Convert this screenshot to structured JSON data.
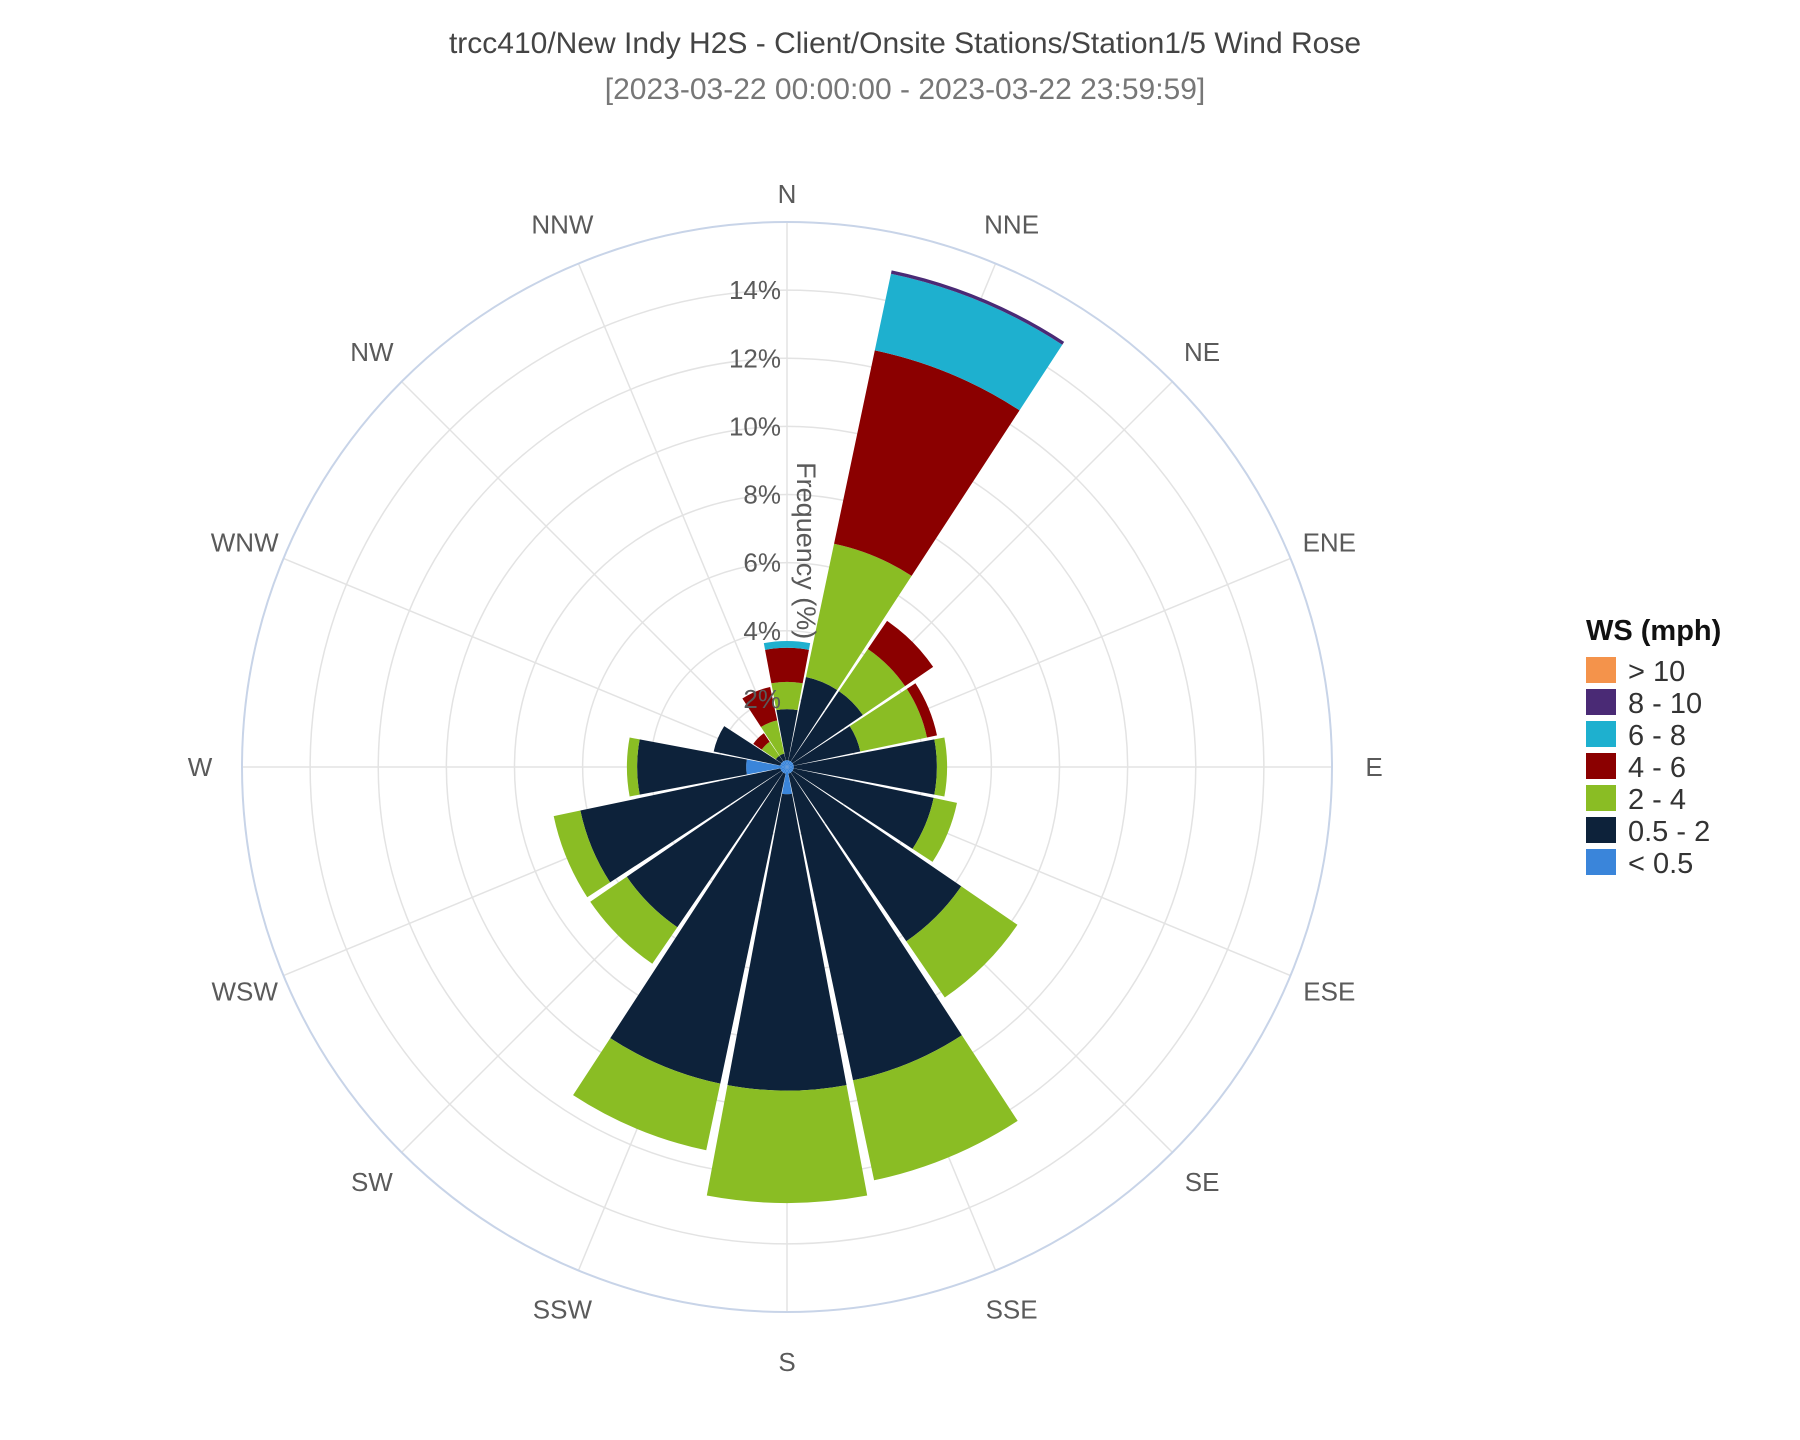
{
  "chart_data": {
    "type": "wind-rose",
    "title": "trcc410/New Indy H2S - Client/Onsite Stations/Station1/5 Wind Rose",
    "subtitle": "[2023-03-22 00:00:00 - 2023-03-22 23:59:59]",
    "radial_axis_title": "Frequency (%)",
    "radial_ticks": [
      "2%",
      "4%",
      "6%",
      "8%",
      "10%",
      "12%",
      "14%"
    ],
    "radial_tick_values": [
      2,
      4,
      6,
      8,
      10,
      12,
      14
    ],
    "r_max": 16,
    "grid": true,
    "legend_position": "right",
    "directions": [
      "N",
      "NNE",
      "NE",
      "ENE",
      "E",
      "ESE",
      "SE",
      "SSE",
      "S",
      "SSW",
      "SW",
      "WSW",
      "W",
      "WNW",
      "NW",
      "NNW"
    ],
    "legend": {
      "title": "WS (mph)",
      "items": [
        {
          "label": "> 10",
          "color": "#F4934B"
        },
        {
          "label": "8 - 10",
          "color": "#4A2A75"
        },
        {
          "label": "6 - 8",
          "color": "#1EB0CF"
        },
        {
          "label": "4 - 6",
          "color": "#8B0000"
        },
        {
          "label": "2 - 4",
          "color": "#8ABD24"
        },
        {
          "label": "0.5 - 2",
          "color": "#0D223A"
        },
        {
          "label": "< 0.5",
          "color": "#3A85DA"
        }
      ]
    },
    "series": [
      {
        "name": "< 0.5",
        "color": "#3A85DA",
        "values": [
          0.2,
          0.2,
          0.2,
          0.2,
          0.2,
          0.2,
          0.2,
          0.2,
          0.8,
          0.2,
          0.2,
          0.2,
          1.2,
          0.2,
          0.2,
          0.2
        ]
      },
      {
        "name": "0.5 - 2",
        "color": "#0D223A",
        "values": [
          1.5,
          2.5,
          2.5,
          2.0,
          4.2,
          4.2,
          6.0,
          9.2,
          8.7,
          9.3,
          5.5,
          6.0,
          3.2,
          2.0,
          0.2,
          0.2
        ]
      },
      {
        "name": "2 - 4",
        "color": "#8ABD24",
        "values": [
          0.8,
          4.0,
          1.5,
          2.0,
          0.3,
          0.7,
          2.0,
          3.0,
          3.3,
          2.0,
          1.3,
          0.8,
          0.3,
          0.0,
          0.5,
          1.0
        ]
      },
      {
        "name": "4 - 6",
        "color": "#8B0000",
        "values": [
          1.0,
          5.8,
          1.0,
          0.3,
          0.0,
          0.0,
          0.0,
          0.0,
          0.0,
          0.0,
          0.0,
          0.0,
          0.0,
          0.0,
          0.3,
          1.0
        ]
      },
      {
        "name": "6 - 8",
        "color": "#1EB0CF",
        "values": [
          0.2,
          2.3,
          0.0,
          0.0,
          0.0,
          0.0,
          0.0,
          0.0,
          0.0,
          0.0,
          0.0,
          0.0,
          0.0,
          0.0,
          0.0,
          0.0
        ]
      },
      {
        "name": "8 - 10",
        "color": "#4A2A75",
        "values": [
          0.0,
          0.1,
          0.0,
          0.0,
          0.0,
          0.0,
          0.0,
          0.0,
          0.0,
          0.0,
          0.0,
          0.0,
          0.0,
          0.0,
          0.0,
          0.0
        ]
      },
      {
        "name": "> 10",
        "color": "#F4934B",
        "values": [
          0.0,
          0.0,
          0.0,
          0.0,
          0.0,
          0.0,
          0.0,
          0.0,
          0.0,
          0.0,
          0.0,
          0.0,
          0.0,
          0.0,
          0.0,
          0.0
        ]
      }
    ]
  }
}
